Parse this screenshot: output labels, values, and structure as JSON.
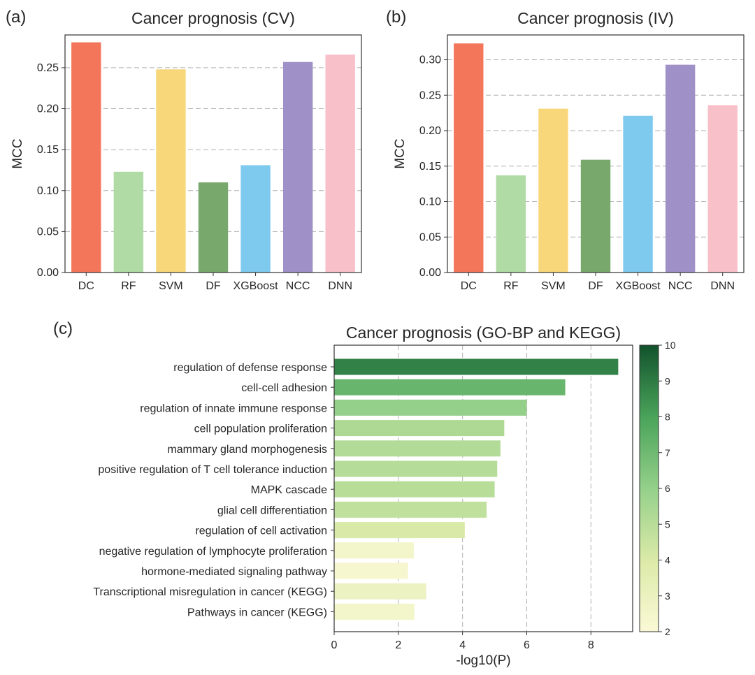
{
  "panels": {
    "a": "(a)",
    "b": "(b)",
    "c": "(c)"
  },
  "chart_data": [
    {
      "id": "a",
      "type": "bar",
      "title": "Cancer prognosis (CV)",
      "xlabel": "",
      "ylabel": "MCC",
      "categories": [
        "DC",
        "RF",
        "SVM",
        "DF",
        "XGBoost",
        "NCC",
        "DNN"
      ],
      "values": [
        0.281,
        0.123,
        0.248,
        0.11,
        0.131,
        0.257,
        0.266
      ],
      "colors": [
        "#f4765a",
        "#b1dba5",
        "#f8d77b",
        "#79a86c",
        "#7ec9ee",
        "#9f91c8",
        "#f8c0c8"
      ],
      "ylim": [
        0,
        0.29
      ],
      "yticks": [
        0.0,
        0.05,
        0.1,
        0.15,
        0.2,
        0.25
      ],
      "ytick_labels": [
        "0.00",
        "0.05",
        "0.10",
        "0.15",
        "0.20",
        "0.25"
      ],
      "grid": "y-dashed"
    },
    {
      "id": "b",
      "type": "bar",
      "title": "Cancer prognosis (IV)",
      "xlabel": "",
      "ylabel": "MCC",
      "categories": [
        "DC",
        "RF",
        "SVM",
        "DF",
        "XGBoost",
        "NCC",
        "DNN"
      ],
      "values": [
        0.323,
        0.137,
        0.231,
        0.159,
        0.221,
        0.293,
        0.236
      ],
      "colors": [
        "#f4765a",
        "#b1dba5",
        "#f8d77b",
        "#79a86c",
        "#7ec9ee",
        "#9f91c8",
        "#f8c0c8"
      ],
      "ylim": [
        0,
        0.335
      ],
      "yticks": [
        0.0,
        0.05,
        0.1,
        0.15,
        0.2,
        0.25,
        0.3
      ],
      "ytick_labels": [
        "0.00",
        "0.05",
        "0.10",
        "0.15",
        "0.20",
        "0.25",
        "0.30"
      ],
      "grid": "y-dashed"
    },
    {
      "id": "c",
      "type": "bar",
      "orientation": "horizontal",
      "title": "Cancer prognosis (GO-BP and KEGG)",
      "xlabel": "-log10(P)",
      "ylabel": "",
      "categories": [
        "regulation of defense response",
        "cell-cell adhesion",
        "regulation of innate immune response",
        "cell population proliferation",
        "mammary gland morphogenesis",
        "positive regulation of T cell tolerance induction",
        "MAPK cascade",
        "glial cell differentiation",
        "regulation of cell activation",
        "negative regulation of lymphocyte proliferation",
        "hormone-mediated signaling pathway",
        "Transcriptional misregulation in cancer (KEGG)",
        "Pathways in cancer (KEGG)"
      ],
      "values": [
        8.85,
        7.2,
        6.0,
        5.3,
        5.18,
        5.08,
        5.0,
        4.75,
        4.07,
        2.48,
        2.3,
        2.87,
        2.5
      ],
      "xlim": [
        0,
        9.3
      ],
      "xticks": [
        0,
        2,
        4,
        6,
        8
      ],
      "grid": "x-dashed",
      "colorbar": {
        "range": [
          2,
          10
        ],
        "ticks": [
          2,
          3,
          4,
          5,
          6,
          7,
          8,
          9,
          10
        ],
        "colormap": "greens"
      }
    }
  ]
}
